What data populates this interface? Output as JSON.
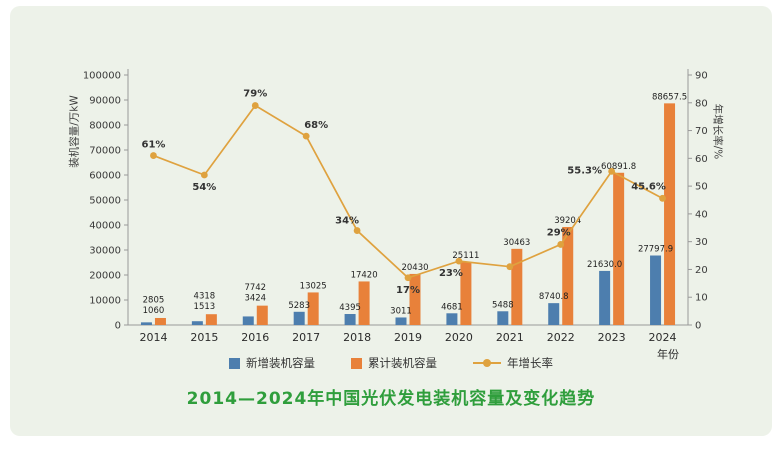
{
  "chart_data": {
    "type": "bar+line",
    "title": "2014—2024年中国光伏发电装机容量及变化趋势",
    "categories": [
      "2014",
      "2015",
      "2016",
      "2017",
      "2018",
      "2019",
      "2020",
      "2021",
      "2022",
      "2023",
      "2024"
    ],
    "series": [
      {
        "name": "新增装机容量",
        "type": "bar",
        "color": "#4d7eae",
        "axis": "left",
        "values": [
          1060,
          1513,
          3424,
          5283,
          4395,
          3011,
          4681,
          5488,
          8740.8,
          21630.0,
          27797.9
        ],
        "labels": [
          "1060",
          "1513",
          "3424",
          "5283",
          "4395",
          "3011",
          "4681",
          "5488",
          "8740.8",
          "21630.0",
          "27797.9"
        ]
      },
      {
        "name": "累计装机容量",
        "type": "bar",
        "color": "#e8813a",
        "axis": "left",
        "values": [
          2805,
          4318,
          7742,
          13025,
          17420,
          20430,
          25111,
          30463,
          39204,
          60891.8,
          88657.5
        ],
        "labels": [
          "2805",
          "4318",
          "7742",
          "13025",
          "17420",
          "20430",
          "25111",
          "30463",
          "39204",
          "60891.8",
          "88657.5"
        ]
      },
      {
        "name": "年增长率",
        "type": "line",
        "color": "#dfa23f",
        "axis": "right",
        "values": [
          61,
          54,
          79,
          68,
          34,
          17,
          23,
          21,
          29,
          55.3,
          45.6
        ],
        "labels": [
          "61%",
          "54%",
          "79%",
          "68%",
          "34%",
          "17%",
          "23%",
          "",
          "29%",
          "55.3%",
          "45.6%"
        ]
      }
    ],
    "left_axis": {
      "label": "装机容量/万kW",
      "min": 0,
      "max": 100000,
      "step": 10000
    },
    "right_axis": {
      "label": "年增长率/%",
      "min": 0,
      "max": 90,
      "step": 10
    },
    "x_axis": {
      "unit": "年份"
    },
    "legend_position": "bottom",
    "grid": false,
    "colors": {
      "title": "#2f9e3c",
      "background": "#edf2e9"
    }
  }
}
